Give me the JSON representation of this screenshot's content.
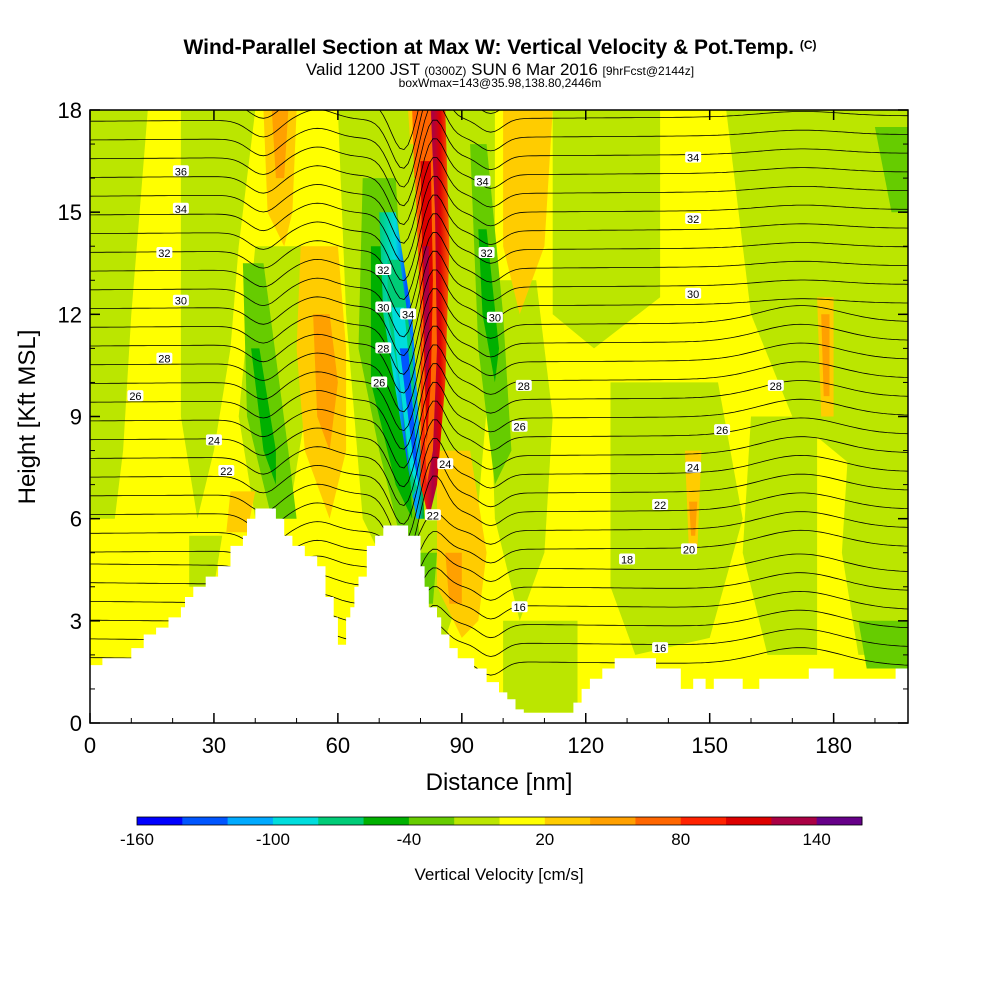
{
  "chart_data": {
    "type": "heatmap",
    "title": "Wind-Parallel Section at Max W: Vertical Velocity & Pot.Temp.",
    "title_mark": "(C)",
    "subtitle_valid": "Valid 1200 JST",
    "subtitle_utc": "(0300Z)",
    "subtitle_date": "SUN 6 Mar 2016",
    "subtitle_fcst": "[9hrFcst@2144z]",
    "subtitle_box": "boxWmax=143@35.98,138.80,2446m",
    "xlabel": "Distance [nm]",
    "ylabel": "Height [Kft MSL]",
    "xlim": [
      0,
      198
    ],
    "ylim": [
      0,
      18
    ],
    "x_ticks": [
      0,
      30,
      60,
      90,
      120,
      150,
      180
    ],
    "y_ticks": [
      0,
      3,
      6,
      9,
      12,
      15,
      18
    ],
    "colorbar": {
      "label": "Vertical Velocity [cm/s]",
      "min": -160,
      "max": 160,
      "step": 20,
      "tick_values": [
        -160,
        -100,
        -40,
        20,
        80,
        140
      ],
      "colors": [
        "#0000ff",
        "#0055ff",
        "#00aaff",
        "#00dddd",
        "#00cc77",
        "#00b000",
        "#66cc00",
        "#bbe600",
        "#ffff00",
        "#ffcc00",
        "#ffa000",
        "#ff6600",
        "#ff2200",
        "#dd0000",
        "#aa0044",
        "#660088"
      ]
    },
    "background_color": "#ffff00",
    "contour_label": "Potential temperature (C)",
    "contour_labels": [
      {
        "x": 22,
        "y": 16.2,
        "text": "36"
      },
      {
        "x": 22,
        "y": 15.1,
        "text": "34"
      },
      {
        "x": 18,
        "y": 13.8,
        "text": "32"
      },
      {
        "x": 22,
        "y": 12.4,
        "text": "30"
      },
      {
        "x": 18,
        "y": 10.7,
        "text": "28"
      },
      {
        "x": 11,
        "y": 9.6,
        "text": "26"
      },
      {
        "x": 30,
        "y": 8.3,
        "text": "24"
      },
      {
        "x": 33,
        "y": 7.4,
        "text": "22"
      },
      {
        "x": 71,
        "y": 13.3,
        "text": "32"
      },
      {
        "x": 71,
        "y": 12.2,
        "text": "30"
      },
      {
        "x": 71,
        "y": 11.0,
        "text": "28"
      },
      {
        "x": 70,
        "y": 10.0,
        "text": "26"
      },
      {
        "x": 77,
        "y": 12.0,
        "text": "34"
      },
      {
        "x": 86,
        "y": 7.6,
        "text": "24"
      },
      {
        "x": 83,
        "y": 6.1,
        "text": "22"
      },
      {
        "x": 95,
        "y": 15.9,
        "text": "34"
      },
      {
        "x": 96,
        "y": 13.8,
        "text": "32"
      },
      {
        "x": 98,
        "y": 11.9,
        "text": "30"
      },
      {
        "x": 105,
        "y": 9.9,
        "text": "28"
      },
      {
        "x": 104,
        "y": 8.7,
        "text": "26"
      },
      {
        "x": 104,
        "y": 3.4,
        "text": "16"
      },
      {
        "x": 130,
        "y": 4.8,
        "text": "18"
      },
      {
        "x": 138,
        "y": 6.4,
        "text": "22"
      },
      {
        "x": 145,
        "y": 5.1,
        "text": "20"
      },
      {
        "x": 146,
        "y": 7.5,
        "text": "24"
      },
      {
        "x": 153,
        "y": 8.6,
        "text": "26"
      },
      {
        "x": 166,
        "y": 9.9,
        "text": "28"
      },
      {
        "x": 146,
        "y": 12.6,
        "text": "30"
      },
      {
        "x": 146,
        "y": 14.8,
        "text": "32"
      },
      {
        "x": 146,
        "y": 16.6,
        "text": "34"
      },
      {
        "x": 138,
        "y": 2.2,
        "text": "16"
      }
    ],
    "terrain_height_kft": [
      [
        0,
        1.7
      ],
      [
        3,
        1.7
      ],
      [
        3,
        1.9
      ],
      [
        10,
        1.9
      ],
      [
        10,
        2.2
      ],
      [
        13,
        2.2
      ],
      [
        13,
        2.6
      ],
      [
        16,
        2.6
      ],
      [
        16,
        2.8
      ],
      [
        19,
        2.8
      ],
      [
        19,
        3.1
      ],
      [
        22,
        3.1
      ],
      [
        22,
        3.4
      ],
      [
        23,
        3.4
      ],
      [
        23,
        3.7
      ],
      [
        25,
        3.7
      ],
      [
        25,
        4.0
      ],
      [
        28,
        4.0
      ],
      [
        28,
        4.3
      ],
      [
        31,
        4.3
      ],
      [
        31,
        4.6
      ],
      [
        34,
        4.6
      ],
      [
        34,
        5.2
      ],
      [
        37,
        5.2
      ],
      [
        37,
        5.5
      ],
      [
        38,
        5.5
      ],
      [
        38,
        6.0
      ],
      [
        40,
        6.0
      ],
      [
        40,
        6.3
      ],
      [
        45,
        6.3
      ],
      [
        45,
        6.0
      ],
      [
        47,
        6.0
      ],
      [
        47,
        5.5
      ],
      [
        49,
        5.5
      ],
      [
        49,
        5.2
      ],
      [
        52,
        5.2
      ],
      [
        52,
        4.9
      ],
      [
        55,
        4.9
      ],
      [
        55,
        4.6
      ],
      [
        57,
        4.6
      ],
      [
        57,
        3.7
      ],
      [
        59,
        3.7
      ],
      [
        59,
        3.1
      ],
      [
        60,
        3.1
      ],
      [
        60,
        2.3
      ],
      [
        62,
        2.3
      ],
      [
        62,
        3.1
      ],
      [
        63,
        3.1
      ],
      [
        63,
        3.4
      ],
      [
        64,
        3.4
      ],
      [
        64,
        4.0
      ],
      [
        65,
        4.0
      ],
      [
        65,
        4.3
      ],
      [
        67,
        4.3
      ],
      [
        67,
        5.2
      ],
      [
        69,
        5.2
      ],
      [
        69,
        5.5
      ],
      [
        71,
        5.5
      ],
      [
        71,
        5.8
      ],
      [
        77,
        5.8
      ],
      [
        77,
        5.5
      ],
      [
        80,
        5.5
      ],
      [
        80,
        4.6
      ],
      [
        81,
        4.6
      ],
      [
        81,
        4.0
      ],
      [
        82,
        4.0
      ],
      [
        82,
        3.4
      ],
      [
        84,
        3.4
      ],
      [
        84,
        3.1
      ],
      [
        85,
        3.1
      ],
      [
        85,
        2.6
      ],
      [
        87,
        2.6
      ],
      [
        87,
        2.2
      ],
      [
        89,
        2.2
      ],
      [
        89,
        1.9
      ],
      [
        93,
        1.9
      ],
      [
        93,
        1.6
      ],
      [
        96,
        1.6
      ],
      [
        96,
        1.2
      ],
      [
        99,
        1.2
      ],
      [
        99,
        0.9
      ],
      [
        101,
        0.9
      ],
      [
        101,
        0.7
      ],
      [
        103,
        0.7
      ],
      [
        103,
        0.4
      ],
      [
        105,
        0.4
      ],
      [
        105,
        0.3
      ],
      [
        117,
        0.3
      ],
      [
        117,
        0.6
      ],
      [
        119,
        0.6
      ],
      [
        119,
        1.0
      ],
      [
        121,
        1.0
      ],
      [
        121,
        1.3
      ],
      [
        124,
        1.3
      ],
      [
        124,
        1.6
      ],
      [
        127,
        1.6
      ],
      [
        127,
        1.9
      ],
      [
        137,
        1.9
      ],
      [
        137,
        1.6
      ],
      [
        143,
        1.6
      ],
      [
        143,
        1.0
      ],
      [
        146,
        1.0
      ],
      [
        146,
        1.3
      ],
      [
        149,
        1.3
      ],
      [
        149,
        1.0
      ],
      [
        151,
        1.0
      ],
      [
        151,
        1.3
      ],
      [
        158,
        1.3
      ],
      [
        158,
        1.0
      ],
      [
        162,
        1.0
      ],
      [
        162,
        1.3
      ],
      [
        174,
        1.3
      ],
      [
        174,
        1.6
      ],
      [
        180,
        1.6
      ],
      [
        180,
        1.3
      ],
      [
        195,
        1.3
      ],
      [
        195,
        1.6
      ],
      [
        198,
        1.6
      ]
    ]
  }
}
